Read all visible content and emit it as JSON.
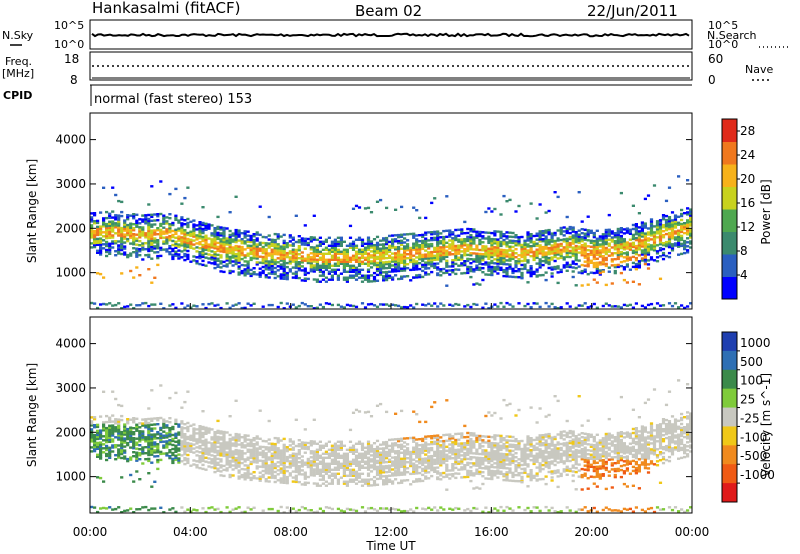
{
  "header": {
    "station": "Hankasalmi (fitACF)",
    "beam": "Beam 02",
    "date": "22/Jun/2011"
  },
  "noise_panel": {
    "left_label": "N.Sky",
    "right_label": "N.Search",
    "left_ticks": [
      "10^5",
      "10^0"
    ],
    "right_ticks": [
      "10^5",
      "10^0"
    ]
  },
  "freq_panel": {
    "left_label_1": "Freq.",
    "left_label_2": "[MHz]",
    "right_label": "Nave",
    "left_ticks": [
      "18",
      "8"
    ],
    "right_ticks": [
      "60",
      "0"
    ]
  },
  "cpid": {
    "label": "CPID",
    "mode": "normal (fast stereo) 153"
  },
  "colors": {
    "power_scale": [
      "#0000ff",
      "#2a5fc0",
      "#3b8a6e",
      "#4fa850",
      "#c8d21e",
      "#f7b21a",
      "#f0781e",
      "#e02a1a"
    ],
    "velocity_scale": [
      "#1f3fb0",
      "#2e6fb4",
      "#3b8a4a",
      "#7fcb3a",
      "#c8c8c0",
      "#f0c818",
      "#f08a1e",
      "#f05a14",
      "#e01a1a"
    ]
  },
  "chart_data": [
    {
      "type": "heatmap",
      "title": "",
      "xlabel": "",
      "ylabel": "Slant Range [km]",
      "x_ticks": [
        "00:00",
        "04:00",
        "08:00",
        "12:00",
        "16:00",
        "20:00",
        "00:00"
      ],
      "y_ticks": [
        "1000",
        "2000",
        "3000",
        "4000"
      ],
      "ylim": [
        180,
        4600
      ],
      "colorbar": {
        "label": "Power [dB]",
        "ticks": [
          "4",
          "8",
          "12",
          "16",
          "20",
          "24",
          "28"
        ],
        "range": [
          0,
          30
        ]
      },
      "echo_band_center_km": {
        "hours": [
          0,
          1,
          2,
          3,
          4,
          5,
          6,
          7,
          8,
          9,
          10,
          11,
          12,
          13,
          14,
          15,
          16,
          17,
          18,
          19,
          20,
          21,
          22,
          23,
          24
        ],
        "values": [
          1900,
          1950,
          1850,
          1900,
          1750,
          1600,
          1500,
          1450,
          1400,
          1350,
          1350,
          1350,
          1400,
          1450,
          1500,
          1550,
          1500,
          1450,
          1500,
          1600,
          1500,
          1550,
          1700,
          1900,
          2050
        ]
      }
    },
    {
      "type": "heatmap",
      "title": "",
      "xlabel": "Time UT",
      "ylabel": "Slant Range [km]",
      "x_ticks": [
        "00:00",
        "04:00",
        "08:00",
        "12:00",
        "16:00",
        "20:00",
        "00:00"
      ],
      "y_ticks": [
        "1000",
        "2000",
        "3000",
        "4000"
      ],
      "ylim": [
        180,
        4600
      ],
      "colorbar": {
        "label": "Velocity [m s^-1]",
        "ticks": [
          "1000",
          "500",
          "100",
          "25",
          "-25",
          "-100",
          "-500",
          "-1000"
        ]
      }
    }
  ]
}
